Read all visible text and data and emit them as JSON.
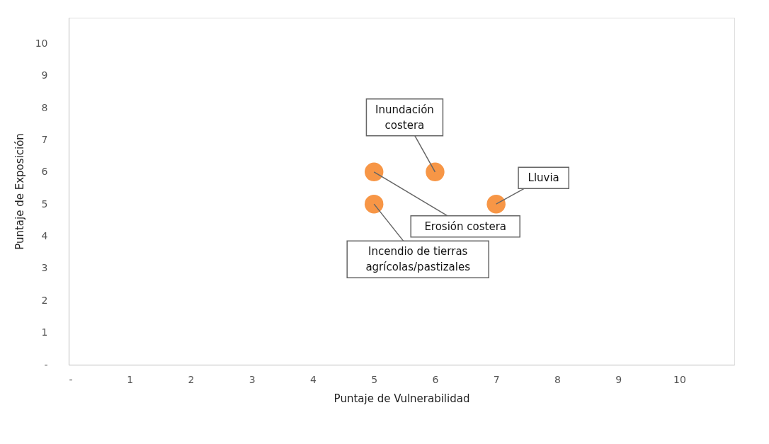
{
  "chart_data": {
    "type": "scatter",
    "xlabel": "Puntaje de Vulnerabilidad",
    "ylabel": "Puntaje de Exposición",
    "x": [
      5,
      6,
      5,
      7
    ],
    "series": [
      {
        "color": "#f79646",
        "values": [
          6,
          6,
          5,
          5
        ]
      }
    ],
    "xlim": [
      0,
      10.9
    ],
    "ylim": [
      0,
      10.8
    ],
    "xticks": [
      {
        "value": 0,
        "label": "-"
      },
      1,
      2,
      3,
      4,
      5,
      6,
      7,
      8,
      9,
      10
    ],
    "yticks": [
      {
        "value": 0,
        "label": "-"
      },
      1,
      2,
      3,
      4,
      5,
      6,
      7,
      8,
      9,
      10
    ],
    "marker": "circle",
    "grid": false,
    "annotations": [
      {
        "text": "Erosión costera",
        "x": 5,
        "y": 6
      },
      {
        "text": "Inundación costera",
        "x": 6,
        "y": 6
      },
      {
        "text": "Incendio de tierras agrícolas/pastizales",
        "x": 5,
        "y": 5
      },
      {
        "text": "Lluvia",
        "x": 7,
        "y": 5
      }
    ]
  }
}
